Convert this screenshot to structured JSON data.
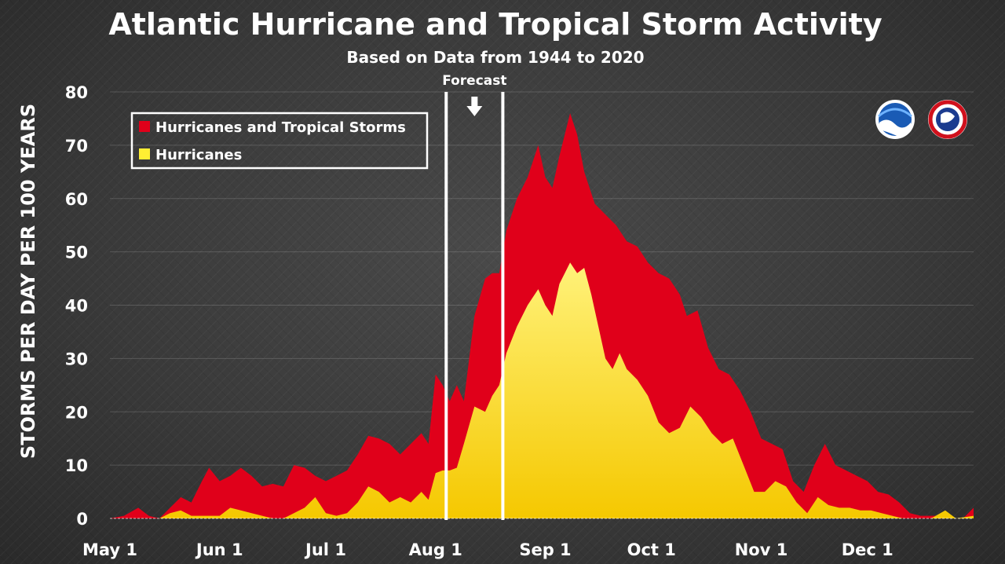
{
  "chart_data": {
    "type": "area",
    "title": "Atlantic Hurricane and Tropical Storm Activity",
    "subtitle": "Based on Data from 1944 to 2020",
    "ylabel": "STORMS PER DAY PER 100 YEARS",
    "xlabel": "",
    "ylim": [
      0,
      80
    ],
    "yticks": [
      0,
      10,
      20,
      30,
      40,
      50,
      60,
      70,
      80
    ],
    "x_domain": [
      "May 1",
      "Dec 31"
    ],
    "x_tick_labels": [
      "May 1",
      "Jun 1",
      "Jul 1",
      "Aug 1",
      "Sep 1",
      "Oct 1",
      "Nov 1",
      "Dec 1"
    ],
    "x_tick_days": [
      0,
      31,
      61,
      92,
      123,
      153,
      184,
      214
    ],
    "grid": true,
    "legend_position": "top-left",
    "annotation": {
      "label": "Forecast",
      "marker": "down-arrow",
      "start": "Aug 4",
      "end": "Aug 20"
    },
    "series": [
      {
        "name": "Hurricanes and Tropical Storms",
        "color": "#e0001a",
        "points": [
          [
            0,
            0
          ],
          [
            4,
            0.5
          ],
          [
            8,
            2
          ],
          [
            11,
            0.5
          ],
          [
            14,
            0
          ],
          [
            17,
            2
          ],
          [
            20,
            4
          ],
          [
            23,
            3
          ],
          [
            26,
            7
          ],
          [
            28,
            9.5
          ],
          [
            31,
            7
          ],
          [
            34,
            8
          ],
          [
            37,
            9.5
          ],
          [
            40,
            8
          ],
          [
            43,
            6
          ],
          [
            46,
            6.5
          ],
          [
            49,
            6
          ],
          [
            52,
            10
          ],
          [
            55,
            9.5
          ],
          [
            58,
            8
          ],
          [
            61,
            7
          ],
          [
            64,
            8
          ],
          [
            67,
            9
          ],
          [
            70,
            12
          ],
          [
            73,
            15.5
          ],
          [
            76,
            15
          ],
          [
            79,
            14
          ],
          [
            82,
            12
          ],
          [
            85,
            14
          ],
          [
            88,
            16
          ],
          [
            90,
            14
          ],
          [
            92,
            27
          ],
          [
            94,
            25
          ],
          [
            96,
            22
          ],
          [
            98,
            25
          ],
          [
            100,
            22
          ],
          [
            103,
            38
          ],
          [
            106,
            45
          ],
          [
            108,
            46
          ],
          [
            110,
            46
          ],
          [
            112,
            54
          ],
          [
            115,
            60
          ],
          [
            118,
            64
          ],
          [
            121,
            70
          ],
          [
            123,
            64
          ],
          [
            125,
            62
          ],
          [
            127,
            68
          ],
          [
            130,
            76
          ],
          [
            132,
            72
          ],
          [
            134,
            65
          ],
          [
            137,
            59
          ],
          [
            140,
            57
          ],
          [
            143,
            55
          ],
          [
            146,
            52
          ],
          [
            149,
            51
          ],
          [
            152,
            48
          ],
          [
            155,
            46
          ],
          [
            158,
            45
          ],
          [
            161,
            42
          ],
          [
            163,
            38
          ],
          [
            166,
            39
          ],
          [
            169,
            32
          ],
          [
            172,
            28
          ],
          [
            175,
            27
          ],
          [
            178,
            24
          ],
          [
            181,
            20
          ],
          [
            184,
            15
          ],
          [
            187,
            14
          ],
          [
            190,
            13
          ],
          [
            193,
            7
          ],
          [
            196,
            5
          ],
          [
            199,
            10
          ],
          [
            202,
            14
          ],
          [
            205,
            10
          ],
          [
            208,
            9
          ],
          [
            211,
            8
          ],
          [
            214,
            7
          ],
          [
            217,
            5
          ],
          [
            220,
            4.5
          ],
          [
            223,
            3
          ],
          [
            226,
            1
          ],
          [
            229,
            0.5
          ],
          [
            232,
            0.5
          ],
          [
            235,
            0.5
          ],
          [
            238,
            0
          ],
          [
            241,
            0
          ],
          [
            244,
            2
          ]
        ]
      },
      {
        "name": "Hurricanes",
        "color": "#ffee33",
        "points": [
          [
            0,
            0
          ],
          [
            14,
            0
          ],
          [
            17,
            1
          ],
          [
            20,
            1.5
          ],
          [
            23,
            0.5
          ],
          [
            28,
            0.5
          ],
          [
            31,
            0.5
          ],
          [
            34,
            2
          ],
          [
            37,
            1.5
          ],
          [
            40,
            1
          ],
          [
            43,
            0.5
          ],
          [
            46,
            0
          ],
          [
            49,
            0
          ],
          [
            52,
            1
          ],
          [
            55,
            2
          ],
          [
            58,
            4
          ],
          [
            61,
            1
          ],
          [
            64,
            0.5
          ],
          [
            67,
            1
          ],
          [
            70,
            3
          ],
          [
            73,
            6
          ],
          [
            76,
            5
          ],
          [
            79,
            3
          ],
          [
            82,
            4
          ],
          [
            85,
            3
          ],
          [
            88,
            5
          ],
          [
            90,
            3.5
          ],
          [
            92,
            8.5
          ],
          [
            94,
            9
          ],
          [
            96,
            9
          ],
          [
            98,
            9.5
          ],
          [
            100,
            14
          ],
          [
            103,
            21
          ],
          [
            106,
            20
          ],
          [
            108,
            23
          ],
          [
            110,
            25
          ],
          [
            112,
            31
          ],
          [
            115,
            36
          ],
          [
            118,
            40
          ],
          [
            121,
            43
          ],
          [
            123,
            40
          ],
          [
            125,
            38
          ],
          [
            127,
            44
          ],
          [
            130,
            48
          ],
          [
            132,
            46
          ],
          [
            134,
            47
          ],
          [
            136,
            42
          ],
          [
            138,
            36
          ],
          [
            140,
            30
          ],
          [
            142,
            28
          ],
          [
            144,
            31
          ],
          [
            146,
            28
          ],
          [
            149,
            26
          ],
          [
            152,
            23
          ],
          [
            155,
            18
          ],
          [
            158,
            16
          ],
          [
            161,
            17
          ],
          [
            164,
            21
          ],
          [
            167,
            19
          ],
          [
            170,
            16
          ],
          [
            173,
            14
          ],
          [
            176,
            15
          ],
          [
            179,
            10
          ],
          [
            182,
            5
          ],
          [
            185,
            5
          ],
          [
            188,
            7
          ],
          [
            191,
            6
          ],
          [
            194,
            3
          ],
          [
            197,
            1
          ],
          [
            200,
            4
          ],
          [
            203,
            2.5
          ],
          [
            206,
            2
          ],
          [
            209,
            2
          ],
          [
            212,
            1.5
          ],
          [
            215,
            1.5
          ],
          [
            218,
            1
          ],
          [
            221,
            0.5
          ],
          [
            224,
            0
          ],
          [
            227,
            0
          ],
          [
            232,
            0
          ],
          [
            236,
            1.5
          ],
          [
            239,
            0
          ],
          [
            244,
            0.5
          ]
        ]
      }
    ]
  },
  "logos": {
    "noaa": "noaa-logo",
    "nws": "national-weather-service-logo"
  }
}
